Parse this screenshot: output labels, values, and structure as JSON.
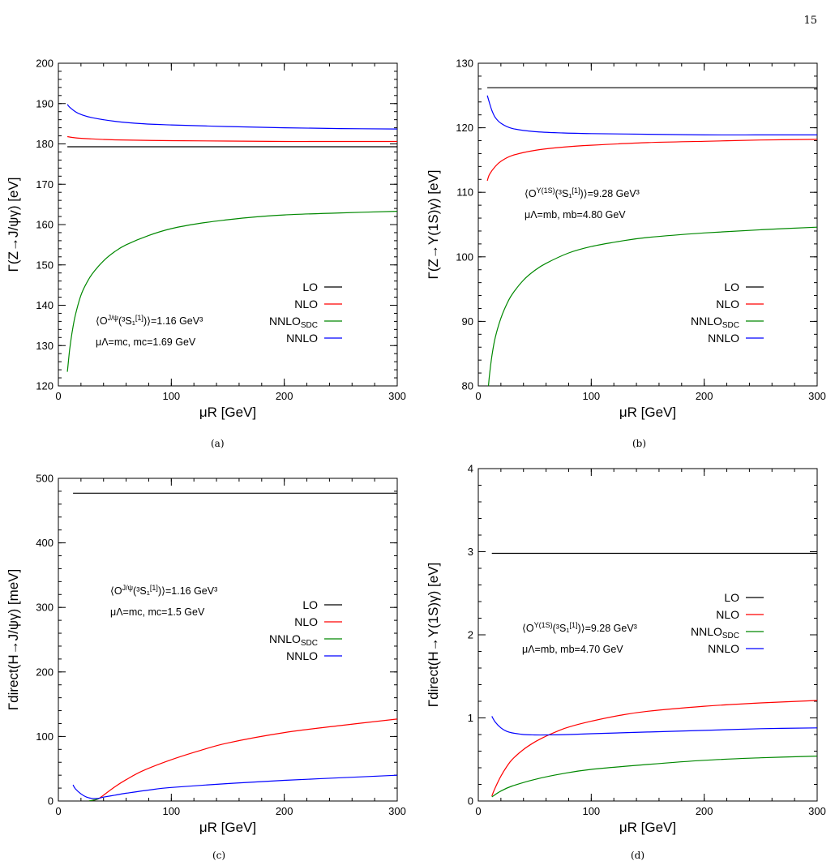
{
  "page": {
    "number": "15"
  },
  "chart_data": [
    {
      "id": "a",
      "type": "line",
      "caption": "(a)",
      "xlabel": "μR [GeV]",
      "ylabel": "Γ(Z→J/ψγ) [eV]",
      "xlim": [
        0,
        300
      ],
      "ylim": [
        120,
        200
      ],
      "xticks": [
        0,
        100,
        200,
        300
      ],
      "yticks": [
        120,
        130,
        140,
        150,
        160,
        170,
        180,
        190,
        200
      ],
      "legend_position": "bottom-right",
      "annotations": [
        "⟨O^{J/ψ}(³S₁^{[1]})⟩=1.16 GeV³",
        "μΛ=mc, mc=1.69 GeV"
      ],
      "series": [
        {
          "name": "LO",
          "color": "#000000",
          "x": [
            8,
            300
          ],
          "y": [
            179.3,
            179.3
          ]
        },
        {
          "name": "NLO",
          "color": "#ff0000",
          "x": [
            8,
            15,
            25,
            50,
            100,
            150,
            200,
            250,
            300
          ],
          "y": [
            181.8,
            181.5,
            181.3,
            181.0,
            180.8,
            180.7,
            180.6,
            180.6,
            180.6
          ]
        },
        {
          "name": "NNLO_SDC",
          "color": "#008800",
          "x": [
            8,
            10,
            12,
            15,
            20,
            25,
            30,
            40,
            50,
            60,
            80,
            100,
            125,
            150,
            175,
            200,
            250,
            300
          ],
          "y": [
            123.5,
            129,
            133,
            137.5,
            142.5,
            145.5,
            147.8,
            151,
            153.3,
            155,
            157.3,
            159,
            160.3,
            161.2,
            161.9,
            162.4,
            162.9,
            163.3
          ]
        },
        {
          "name": "NNLO",
          "color": "#0000ff",
          "x": [
            8,
            10,
            15,
            20,
            30,
            50,
            75,
            100,
            150,
            200,
            250,
            300
          ],
          "y": [
            189.8,
            189.1,
            188.0,
            187.3,
            186.5,
            185.6,
            185.0,
            184.7,
            184.3,
            184.0,
            183.8,
            183.7
          ]
        }
      ]
    },
    {
      "id": "b",
      "type": "line",
      "caption": "(b)",
      "xlabel": "μR [GeV]",
      "ylabel": "Γ(Z→Υ(1S)γ) [eV]",
      "xlim": [
        0,
        300
      ],
      "ylim": [
        80,
        130
      ],
      "xticks": [
        0,
        100,
        200,
        300
      ],
      "yticks": [
        80,
        90,
        100,
        110,
        120,
        130
      ],
      "legend_position": "middle-right",
      "annotations": [
        "⟨O^{Υ(1S)}(³S₁^{[1]})⟩=9.28 GeV³",
        "μΛ=mb, mb=4.80 GeV"
      ],
      "series": [
        {
          "name": "LO",
          "color": "#000000",
          "x": [
            8,
            300
          ],
          "y": [
            126.2,
            126.2
          ]
        },
        {
          "name": "NLO",
          "color": "#ff0000",
          "x": [
            8,
            10,
            15,
            20,
            30,
            50,
            75,
            100,
            150,
            200,
            250,
            300
          ],
          "y": [
            111.8,
            112.8,
            114.0,
            114.8,
            115.7,
            116.5,
            117.0,
            117.3,
            117.7,
            117.9,
            118.1,
            118.2
          ]
        },
        {
          "name": "NNLO_SDC",
          "color": "#008800",
          "x": [
            9,
            10,
            12,
            15,
            20,
            25,
            30,
            40,
            50,
            60,
            80,
            100,
            125,
            150,
            200,
            250,
            300
          ],
          "y": [
            80,
            81.8,
            84.6,
            87.5,
            90.5,
            92.6,
            94.2,
            96.4,
            97.9,
            99.0,
            100.6,
            101.6,
            102.4,
            103.0,
            103.7,
            104.2,
            104.6
          ]
        },
        {
          "name": "NNLO",
          "color": "#0000ff",
          "x": [
            8,
            10,
            12,
            15,
            20,
            30,
            50,
            75,
            100,
            150,
            200,
            250,
            300
          ],
          "y": [
            125.0,
            123.8,
            122.7,
            121.6,
            120.7,
            119.9,
            119.4,
            119.2,
            119.1,
            119.0,
            118.9,
            118.9,
            118.9
          ]
        }
      ]
    },
    {
      "id": "c",
      "type": "line",
      "caption": "(c)",
      "xlabel": "μR [GeV]",
      "ylabel": "Γdirect(H→J/ψγ) [meV]",
      "xlim": [
        0,
        300
      ],
      "ylim": [
        0,
        500
      ],
      "xticks": [
        0,
        100,
        200,
        300
      ],
      "yticks": [
        0,
        100,
        200,
        300,
        400,
        500
      ],
      "legend_position": "middle-right",
      "annotations": [
        "⟨O^{J/ψ}(³S₁^{[1]})⟩=1.16 GeV³",
        "μΛ=mc, mc=1.5 GeV"
      ],
      "series": [
        {
          "name": "LO",
          "color": "#000000",
          "x": [
            13,
            300
          ],
          "y": [
            477,
            477
          ]
        },
        {
          "name": "NLO",
          "color": "#ff0000",
          "x": [
            27,
            30,
            33,
            36,
            40,
            50,
            60,
            75,
            100,
            125,
            150,
            200,
            250,
            300
          ],
          "y": [
            0,
            1,
            2,
            4,
            9,
            22,
            33,
            47,
            64,
            78,
            90,
            106,
            117,
            127
          ]
        },
        {
          "name": "NNLO_SDC",
          "color": "#008800",
          "x": [
            27,
            30,
            33,
            36
          ],
          "y": [
            0,
            1,
            2,
            4
          ]
        },
        {
          "name": "NNLO",
          "color": "#0000ff",
          "x": [
            13,
            15,
            20,
            25,
            30,
            35,
            40,
            50,
            60,
            80,
            100,
            150,
            200,
            250,
            300
          ],
          "y": [
            25,
            19,
            11,
            6,
            4,
            4,
            6,
            9,
            12,
            17,
            21,
            27,
            32,
            36,
            40
          ]
        }
      ]
    },
    {
      "id": "d",
      "type": "line",
      "caption": "(d)",
      "xlabel": "μR [GeV]",
      "ylabel": "Γdirect(H→Υ(1S)γ) [eV]",
      "xlim": [
        0,
        300
      ],
      "ylim": [
        0,
        4
      ],
      "xticks": [
        0,
        100,
        200,
        300
      ],
      "yticks": [
        0,
        1,
        2,
        3,
        4
      ],
      "legend_position": "middle-right",
      "annotations": [
        "⟨O^{Υ(1S)}(³S₁^{[1]})⟩=9.28 GeV³",
        "μΛ=mb, mb=4.70 GeV"
      ],
      "series": [
        {
          "name": "LO",
          "color": "#000000",
          "x": [
            12,
            300
          ],
          "y": [
            2.98,
            2.98
          ]
        },
        {
          "name": "NLO",
          "color": "#ff0000",
          "x": [
            12,
            15,
            20,
            25,
            30,
            40,
            50,
            60,
            70,
            80,
            100,
            125,
            150,
            200,
            250,
            300
          ],
          "y": [
            0.06,
            0.16,
            0.3,
            0.41,
            0.5,
            0.62,
            0.71,
            0.78,
            0.84,
            0.89,
            0.96,
            1.03,
            1.08,
            1.14,
            1.18,
            1.21
          ]
        },
        {
          "name": "NNLO_SDC",
          "color": "#008800",
          "x": [
            12,
            20,
            30,
            50,
            75,
            100,
            150,
            200,
            250,
            300
          ],
          "y": [
            0.05,
            0.12,
            0.18,
            0.26,
            0.33,
            0.38,
            0.44,
            0.49,
            0.52,
            0.54
          ]
        },
        {
          "name": "NNLO",
          "color": "#0000ff",
          "x": [
            12,
            15,
            20,
            25,
            30,
            40,
            50,
            60,
            80,
            100,
            150,
            200,
            250,
            300
          ],
          "y": [
            1.02,
            0.95,
            0.88,
            0.84,
            0.82,
            0.8,
            0.795,
            0.795,
            0.8,
            0.81,
            0.83,
            0.85,
            0.87,
            0.88
          ]
        }
      ]
    }
  ]
}
